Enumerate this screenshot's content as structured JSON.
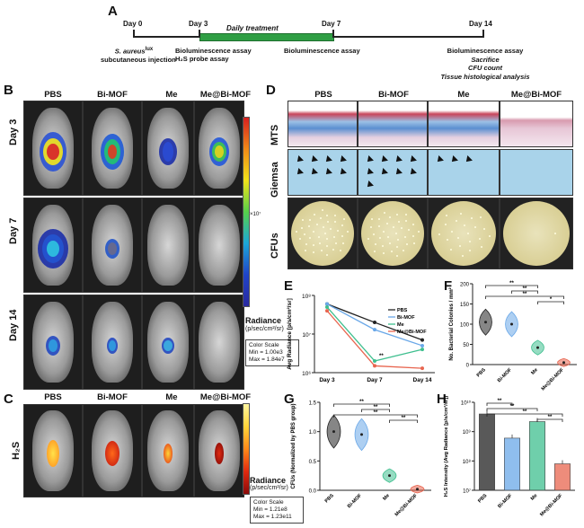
{
  "panel_labels": {
    "A": "A",
    "B": "B",
    "C": "C",
    "D": "D",
    "E": "E",
    "F": "F",
    "G": "G",
    "H": "H"
  },
  "timeline": {
    "days": [
      "Day 0",
      "Day 3",
      "Day 7",
      "Day 14"
    ],
    "bar_label": "Daily treatment",
    "day0_note_line1": "S. aureus",
    "day0_note_sup": "lux",
    "day0_note_line2": "subcutaneous injection",
    "day3_note_line1": "Bioluminescence assay",
    "day3_note_line2": "H₂S probe assay",
    "day7_note": "Bioluminescence assay",
    "day14_notes": [
      "Bioluminescence assay",
      "Sacrifice",
      "CFU count",
      "Tissue histological analysis"
    ]
  },
  "groups": [
    "PBS",
    "Bi-MOF",
    "Me",
    "Me@Bi-MOF"
  ],
  "panelB": {
    "rows": [
      "Day 3",
      "Day 7",
      "Day 14"
    ],
    "colorbar_exp": "×10⁷",
    "radiance_label": "Radiance",
    "radiance_unit": "(p/sec/cm²/sr)",
    "scale_title": "Color Scale",
    "scale_min": "Min = 1.00e3",
    "scale_max": "Max = 1.84e7"
  },
  "panelC": {
    "row": "H₂S",
    "radiance_label": "Radiance",
    "radiance_unit": "(p/sec/cm²/sr)",
    "scale_title": "Color Scale",
    "scale_min": "Min = 1.21e8",
    "scale_max": "Max = 1.23e11"
  },
  "panelD": {
    "rows": [
      "MTS",
      "Giemsa",
      "CFUs"
    ]
  },
  "colors": {
    "PBS": "#222222",
    "Bi-MOF": "#6aa8e8",
    "Me": "#3fbf8f",
    "Me@Bi-MOF": "#e8654f",
    "timeline_bar": "#2f9e44"
  },
  "chart_data": [
    {
      "panel": "E",
      "type": "line",
      "x": [
        "Day 3",
        "Day 7",
        "Day 14"
      ],
      "ylabel": "Avg Radiance [p/s/cm²/sr]",
      "yscale": "log",
      "ylim": [
        1000000,
        100000000
      ],
      "yticks": [
        "10⁶",
        "10⁷",
        "10⁸"
      ],
      "legend_position": "top-right",
      "annotations": [
        "**"
      ],
      "series": [
        {
          "name": "PBS",
          "values": [
            60000000,
            20000000,
            7000000
          ]
        },
        {
          "name": "Bi-MOF",
          "values": [
            60000000,
            13000000,
            5000000
          ]
        },
        {
          "name": "Me",
          "values": [
            50000000,
            2000000,
            4000000
          ]
        },
        {
          "name": "Me@Bi-MOF",
          "values": [
            40000000,
            1500000,
            1300000
          ]
        }
      ]
    },
    {
      "panel": "F",
      "type": "violin",
      "categories": [
        "PBS",
        "Bi-MOF",
        "Me",
        "Me@Bi-MOF"
      ],
      "ylabel": "No. Bacterial Colonies / mm²",
      "ylim": [
        0,
        200
      ],
      "yticks": [
        "0",
        "50",
        "100",
        "150",
        "200"
      ],
      "values": [
        105,
        100,
        42,
        5
      ],
      "brackets": [
        {
          "from": 0,
          "to": 2,
          "label": "**"
        },
        {
          "from": 1,
          "to": 2,
          "label": "**"
        },
        {
          "from": 0,
          "to": 3,
          "label": "**"
        },
        {
          "from": 2,
          "to": 3,
          "label": "*"
        }
      ]
    },
    {
      "panel": "G",
      "type": "violin",
      "categories": [
        "PBS",
        "Bi-MOF",
        "Me",
        "Me@Bi-MOF"
      ],
      "ylabel": "CFUs (Normalized by PBS group)",
      "ylim": [
        0,
        1.5
      ],
      "yticks": [
        "0.0",
        "0.5",
        "1.0",
        "1.5"
      ],
      "values": [
        1.0,
        0.95,
        0.25,
        0.02
      ],
      "brackets": [
        {
          "from": 0,
          "to": 2,
          "label": "**"
        },
        {
          "from": 1,
          "to": 2,
          "label": "**"
        },
        {
          "from": 0,
          "to": 3,
          "label": "**"
        },
        {
          "from": 2,
          "to": 3,
          "label": "**"
        }
      ]
    },
    {
      "panel": "H",
      "type": "bar",
      "categories": [
        "PBS",
        "Bi-MOF",
        "Me",
        "Me@Bi-MOF"
      ],
      "ylabel": "H₂S Intensity (Avg Radiance [p/s/cm²/sr])",
      "yscale": "log",
      "ylim": [
        10000000,
        10000000000
      ],
      "yticks": [
        "10⁷",
        "10⁸",
        "10⁹",
        "10¹⁰"
      ],
      "values": [
        4000000000,
        600000000,
        2200000000,
        80000000
      ],
      "brackets": [
        {
          "from": 0,
          "to": 1,
          "label": "**"
        },
        {
          "from": 0,
          "to": 2,
          "label": "**"
        },
        {
          "from": 0,
          "to": 3,
          "label": "**"
        },
        {
          "from": 2,
          "to": 3,
          "label": "**"
        }
      ]
    }
  ]
}
